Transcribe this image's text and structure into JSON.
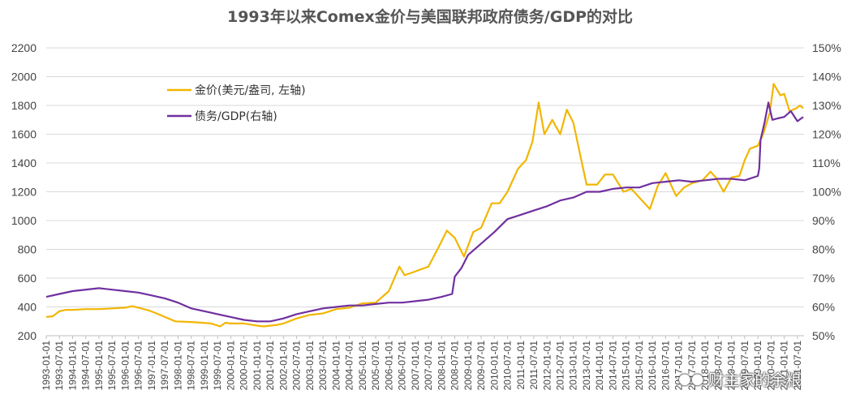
{
  "chart_data": {
    "type": "line",
    "title": "1993年以来Comex金价与美国联邦政府债务/GDP的对比",
    "y_left": {
      "ylim": [
        200,
        2200
      ],
      "ticks": [
        200,
        400,
        600,
        800,
        1000,
        1200,
        1400,
        1600,
        1800,
        2000,
        2200
      ],
      "tick_labels": [
        "200",
        "400",
        "600",
        "800",
        "1000",
        "1200",
        "1400",
        "1600",
        "1800",
        "2000",
        "2200"
      ]
    },
    "y_right": {
      "ylim": [
        50,
        150
      ],
      "ticks": [
        50,
        60,
        70,
        80,
        90,
        100,
        110,
        120,
        130,
        140,
        150
      ],
      "tick_labels": [
        "50%",
        "60%",
        "70%",
        "80%",
        "90%",
        "100%",
        "110%",
        "120%",
        "130%",
        "140%",
        "150%"
      ]
    },
    "x_ticks": [
      "1993-01-01",
      "1993-07-01",
      "1994-01-01",
      "1994-07-01",
      "1995-01-01",
      "1995-07-01",
      "1996-01-01",
      "1996-07-01",
      "1997-01-01",
      "1997-07-01",
      "1998-01-01",
      "1998-07-01",
      "1999-01-01",
      "1999-07-01",
      "2000-01-01",
      "2000-07-01",
      "2001-01-01",
      "2001-07-01",
      "2002-01-01",
      "2002-07-01",
      "2003-01-01",
      "2003-07-01",
      "2004-01-01",
      "2004-07-01",
      "2005-01-01",
      "2005-07-01",
      "2006-01-01",
      "2006-07-01",
      "2007-01-01",
      "2007-07-01",
      "2008-01-01",
      "2008-07-01",
      "2009-01-01",
      "2009-07-01",
      "2010-01-01",
      "2010-07-01",
      "2011-01-01",
      "2011-07-01",
      "2012-01-01",
      "2012-07-01",
      "2013-01-01",
      "2013-07-01",
      "2014-01-01",
      "2014-07-01",
      "2015-01-01",
      "2015-07-01",
      "2016-01-01",
      "2016-07-01",
      "2017-01-01",
      "2017-07-01",
      "2018-01-01",
      "2018-07-01",
      "2019-01-01",
      "2019-07-01",
      "2020-01-01",
      "2020-07-01",
      "2021-01-01",
      "2021-07-01"
    ],
    "x_range": [
      1993.0,
      2021.75
    ],
    "grid": true,
    "legend_position": "top-left",
    "series": [
      {
        "name": "金价(美元/盎司, 左轴)",
        "axis": "left",
        "color": "#F2B600",
        "x": [
          1993.0,
          1993.25,
          1993.5,
          1993.75,
          1994.0,
          1994.5,
          1995.0,
          1995.5,
          1996.0,
          1996.25,
          1996.5,
          1996.9,
          1997.25,
          1997.5,
          1997.9,
          1998.5,
          1998.9,
          1999.25,
          1999.6,
          1999.8,
          2000.0,
          2000.5,
          2001.0,
          2001.25,
          2001.75,
          2002.0,
          2002.5,
          2003.0,
          2003.5,
          2004.0,
          2004.5,
          2005.0,
          2005.5,
          2006.0,
          2006.4,
          2006.6,
          2006.9,
          2007.5,
          2007.9,
          2008.2,
          2008.5,
          2008.85,
          2009.2,
          2009.5,
          2009.9,
          2010.2,
          2010.5,
          2010.9,
          2011.2,
          2011.45,
          2011.68,
          2011.9,
          2012.2,
          2012.5,
          2012.75,
          2013.0,
          2013.3,
          2013.5,
          2013.9,
          2014.2,
          2014.5,
          2014.9,
          2015.2,
          2015.5,
          2015.9,
          2016.2,
          2016.5,
          2016.9,
          2017.2,
          2017.5,
          2017.9,
          2018.2,
          2018.4,
          2018.7,
          2019.0,
          2019.3,
          2019.5,
          2019.7,
          2020.0,
          2020.2,
          2020.45,
          2020.6,
          2020.85,
          2021.0,
          2021.2,
          2021.45,
          2021.6,
          2021.72
        ],
        "values": [
          330,
          335,
          370,
          380,
          380,
          385,
          385,
          390,
          395,
          405,
          395,
          375,
          350,
          330,
          300,
          295,
          290,
          285,
          265,
          290,
          285,
          285,
          270,
          265,
          275,
          285,
          320,
          345,
          355,
          385,
          395,
          425,
          430,
          510,
          680,
          620,
          640,
          680,
          820,
          930,
          880,
          750,
          920,
          950,
          1120,
          1120,
          1200,
          1360,
          1420,
          1550,
          1820,
          1600,
          1700,
          1600,
          1770,
          1680,
          1420,
          1250,
          1250,
          1320,
          1320,
          1200,
          1220,
          1160,
          1080,
          1240,
          1330,
          1170,
          1230,
          1260,
          1280,
          1340,
          1300,
          1200,
          1300,
          1310,
          1420,
          1500,
          1520,
          1600,
          1750,
          1950,
          1870,
          1880,
          1760,
          1780,
          1800,
          1780
        ]
      },
      {
        "name": "债务/GDP(右轴)",
        "axis": "right",
        "color": "#7030A0",
        "x": [
          1993.0,
          1993.5,
          1994.0,
          1995.0,
          1995.5,
          1996.0,
          1996.5,
          1997.0,
          1997.5,
          1998.0,
          1998.5,
          1999.0,
          1999.5,
          2000.0,
          2000.5,
          2001.0,
          2001.5,
          2002.0,
          2002.5,
          2003.0,
          2003.5,
          2004.0,
          2004.5,
          2005.0,
          2005.5,
          2006.0,
          2006.5,
          2007.0,
          2007.5,
          2008.0,
          2008.4,
          2008.5,
          2008.75,
          2009.0,
          2009.5,
          2010.0,
          2010.5,
          2011.0,
          2011.5,
          2012.0,
          2012.5,
          2013.0,
          2013.5,
          2014.0,
          2014.5,
          2015.0,
          2015.5,
          2016.0,
          2016.5,
          2017.0,
          2017.5,
          2018.0,
          2018.5,
          2019.0,
          2019.5,
          2020.0,
          2020.05,
          2020.1,
          2020.25,
          2020.4,
          2020.55,
          2020.75,
          2021.0,
          2021.25,
          2021.5,
          2021.72
        ],
        "values": [
          63.5,
          64.5,
          65.5,
          66.5,
          66.0,
          65.5,
          65.0,
          64.0,
          63.0,
          61.5,
          59.5,
          58.5,
          57.5,
          56.5,
          55.5,
          55.0,
          55.0,
          56.0,
          57.5,
          58.5,
          59.5,
          60.0,
          60.5,
          60.5,
          61.0,
          61.5,
          61.5,
          62.0,
          62.5,
          63.5,
          64.5,
          70.5,
          73.5,
          78.0,
          82.0,
          86.0,
          90.5,
          92.0,
          93.5,
          95.0,
          97.0,
          98.0,
          100.0,
          100.0,
          101.0,
          101.5,
          101.5,
          103.0,
          103.5,
          104.0,
          103.5,
          104.0,
          104.5,
          104.5,
          104.0,
          105.5,
          108.0,
          118.0,
          124.0,
          131.0,
          125.0,
          125.5,
          126.0,
          128.0,
          124.5,
          126.0
        ]
      }
    ],
    "watermark": "财主家的余粮"
  }
}
